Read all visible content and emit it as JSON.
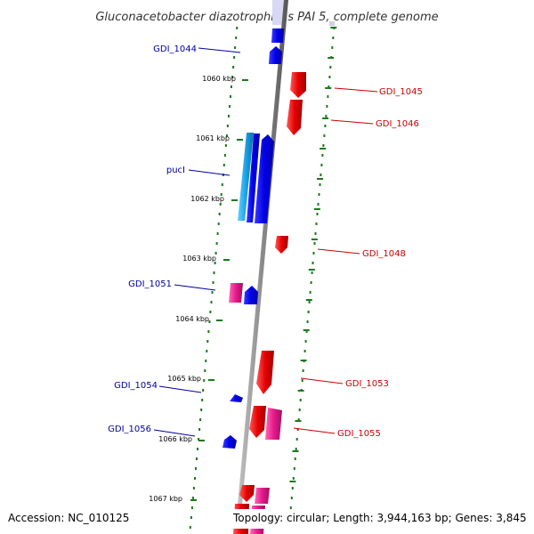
{
  "title": "Gluconacetobacter diazotrophicus PAI 5, complete genome",
  "accession": "Accession: NC_010125",
  "topology": "Topology: circular; Length: 3,944,163 bp; Genes: 3,845",
  "colors": {
    "background": "#ffffff",
    "backbone": "#8c8c8c",
    "tick": "#1a7a1a",
    "forward_strand": "#0000e6",
    "reverse_strand": "#e60000",
    "rna": "#e6198c",
    "cds_alt": "#1aa3e6",
    "left_label": "#00009e",
    "right_label": "#c80000"
  },
  "kbp_ticks": [
    "1060 kbp",
    "1061 kbp",
    "1062 kbp",
    "1063 kbp",
    "1064 kbp",
    "1065 kbp",
    "1066 kbp",
    "1067 kbp"
  ],
  "left_labels": [
    "GDI_1044",
    "pucI",
    "GDI_1051",
    "GDI_1054",
    "GDI_1056"
  ],
  "right_labels": [
    "GDI_1045",
    "GDI_1046",
    "GDI_1048",
    "GDI_1053",
    "GDI_1055"
  ]
}
